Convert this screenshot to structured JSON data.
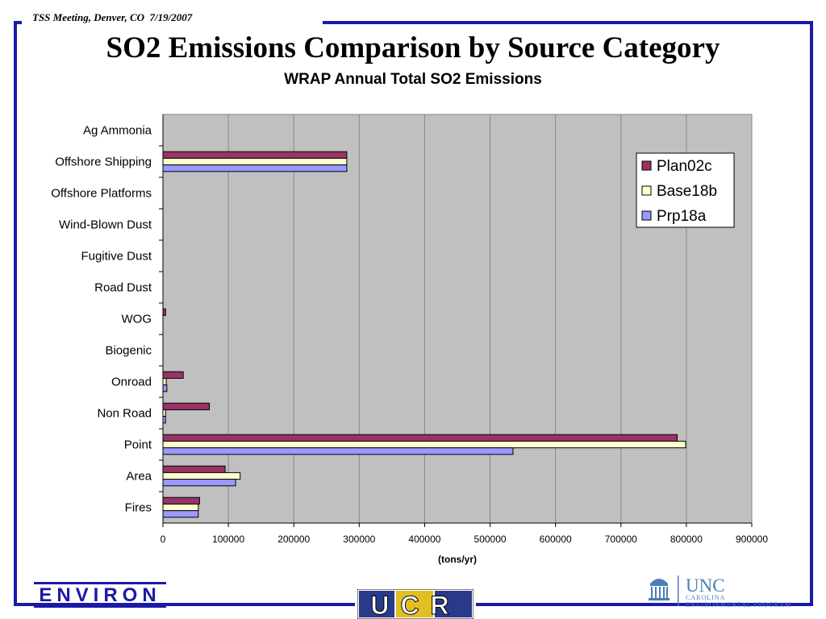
{
  "header": {
    "meeting": "TSS Meeting, Denver, CO  7/19/2007",
    "title": "SO2 Emissions Comparison by Source Category",
    "subtitle": "WRAP Annual Total SO2 Emissions"
  },
  "colors": {
    "frame": "#1a1aa8",
    "plot_bg": "#c0c0c0",
    "Plan02c": "#993366",
    "Base18b": "#ffffcc",
    "Prp18a": "#9999ff"
  },
  "chart_data": {
    "type": "bar",
    "orientation": "horizontal",
    "title": "WRAP Annual Total SO2 Emissions",
    "xlabel": "(tons/yr)",
    "ylabel": "",
    "xlim": [
      0,
      900000
    ],
    "xticks": [
      "0",
      "100000",
      "200000",
      "300000",
      "400000",
      "500000",
      "600000",
      "700000",
      "800000",
      "900000"
    ],
    "grid": "vertical",
    "legend_position": "top-right",
    "categories": [
      "Ag Ammonia",
      "Offshore Shipping",
      "Offshore Platforms",
      "Wind-Blown Dust",
      "Fugitive Dust",
      "Road Dust",
      "WOG",
      "Biogenic",
      "Onroad",
      "Non Road",
      "Point",
      "Area",
      "Fires"
    ],
    "series": [
      {
        "name": "Plan02c",
        "values": [
          0,
          281000,
          0,
          0,
          0,
          0,
          4000,
          0,
          31000,
          71000,
          786000,
          95000,
          56000
        ]
      },
      {
        "name": "Base18b",
        "values": [
          0,
          281000,
          0,
          0,
          0,
          0,
          0,
          0,
          5000,
          4000,
          799000,
          118000,
          54000
        ]
      },
      {
        "name": "Prp18a",
        "values": [
          0,
          281000,
          0,
          0,
          0,
          0,
          0,
          0,
          6000,
          4000,
          535000,
          111000,
          54000
        ]
      }
    ]
  },
  "logos": {
    "environ": "ENVIRON",
    "ucr": "UCR",
    "unc_name": "UNC",
    "unc_line1": "CAROLINA",
    "unc_line2": "ENVIRONMENTAL PROGRAM"
  }
}
